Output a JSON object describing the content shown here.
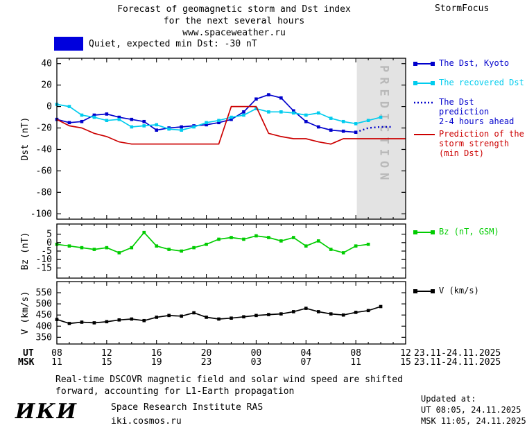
{
  "header": {
    "title_line1": "Forecast of geomagnetic storm and Dst index",
    "title_line2": "for the next several hours",
    "title_line3": "www.spaceweather.ru",
    "brand": "StormFocus"
  },
  "status": {
    "box_color": "#0000dd",
    "label": "Quiet, expected min Dst: -30 nT"
  },
  "prediction_band": {
    "label": "PREDICTION",
    "fill": "#e3e3e3",
    "text_color": "#b9b9b9",
    "start_hour": 32.08
  },
  "xaxis": {
    "tick_hours": [
      8,
      12,
      16,
      20,
      24,
      28,
      32,
      36
    ],
    "ut_row_label": "UT",
    "msk_row_label": "MSK",
    "ut_ticks": [
      "08",
      "12",
      "16",
      "20",
      "00",
      "04",
      "08",
      "12"
    ],
    "msk_ticks": [
      "11",
      "15",
      "19",
      "23",
      "03",
      "07",
      "11",
      "15"
    ],
    "ut_date": "23.11-24.11.2025",
    "msk_date": "23.11-24.11.2025"
  },
  "chart_data": [
    {
      "type": "line",
      "ylabel": "Dst (nT)",
      "ylim": [
        -100,
        40
      ],
      "yticks": [
        40,
        20,
        0,
        -20,
        -40,
        -60,
        -80,
        -100
      ],
      "plot_range": [
        -105,
        45
      ],
      "x_hours_range": [
        8,
        36
      ],
      "has_prediction_band": true,
      "series": [
        {
          "name": "The Dst, Kyoto",
          "color": "#0000cc",
          "line": "solid",
          "marker": "square",
          "x_start": 8,
          "values": [
            -12,
            -15,
            -14,
            -8,
            -7,
            -10,
            -12,
            -14,
            -22,
            -20,
            -19,
            -18,
            -17,
            -15,
            -12,
            -5,
            7,
            11,
            8,
            -4,
            -14,
            -19,
            -22,
            -23,
            -24
          ]
        },
        {
          "name": "The recovered Dst",
          "color": "#00ccee",
          "line": "solid",
          "marker": "square",
          "x_start": 8,
          "values": [
            2,
            0,
            -8,
            -10,
            -13,
            -12,
            -19,
            -18,
            -17,
            -21,
            -22,
            -19,
            -15,
            -13,
            -10,
            -8,
            -2,
            -5,
            -5,
            -6,
            -8,
            -6,
            -11,
            -14,
            -16,
            -13,
            -10
          ]
        },
        {
          "name": "The Dst prediction 2-4 hours ahead",
          "color": "#0000cc",
          "line": "dotted",
          "marker": "none",
          "x_start": 32,
          "values": [
            -24,
            -20,
            -19,
            -19
          ]
        },
        {
          "name": "Prediction of the storm strength (min Dst)",
          "color": "#cc0000",
          "line": "solid",
          "marker": "none",
          "x_start": 8,
          "values": [
            -12,
            -18,
            -20,
            -25,
            -28,
            -33,
            -35,
            -35,
            -35,
            -35,
            -35,
            -35,
            -35,
            -35,
            0,
            0,
            0,
            -25,
            -28,
            -30,
            -30,
            -33,
            -35,
            -30,
            -30,
            -30,
            -30,
            -30,
            -30
          ]
        }
      ]
    },
    {
      "type": "line",
      "ylabel": "Bz (nT)",
      "ylim": [
        -15,
        5
      ],
      "yticks": [
        5,
        0,
        -5,
        -10,
        -15
      ],
      "plot_range": [
        -21,
        11
      ],
      "x_hours_range": [
        8,
        36
      ],
      "has_prediction_band": false,
      "series": [
        {
          "name": "Bz (nT, GSM)",
          "color": "#00cc00",
          "line": "solid",
          "marker": "square",
          "x_start": 8,
          "values": [
            -1,
            -2,
            -3,
            -4,
            -3,
            -6,
            -3,
            6,
            -2,
            -4,
            -5,
            -3,
            -1,
            2,
            3,
            2,
            4,
            3,
            1,
            3,
            -2,
            1,
            -4,
            -6,
            -2,
            -1
          ]
        }
      ]
    },
    {
      "type": "line",
      "ylabel": "V (km/s)",
      "ylim": [
        350,
        550
      ],
      "yticks": [
        550,
        500,
        450,
        400,
        350
      ],
      "plot_range": [
        320,
        600
      ],
      "x_hours_range": [
        8,
        36
      ],
      "has_prediction_band": false,
      "series": [
        {
          "name": "V (km/s)",
          "color": "#000000",
          "line": "solid",
          "marker": "square",
          "x_start": 8,
          "values": [
            430,
            412,
            418,
            415,
            420,
            428,
            432,
            425,
            440,
            448,
            445,
            460,
            440,
            432,
            436,
            442,
            448,
            452,
            455,
            465,
            480,
            465,
            455,
            450,
            462,
            470,
            488
          ]
        }
      ]
    }
  ],
  "legend": {
    "items": [
      {
        "label_lines": [
          "The Dst, Kyoto"
        ],
        "color": "#0000cc",
        "marker": "line-squares"
      },
      {
        "label_lines": [
          "The recovered Dst"
        ],
        "color": "#00ccee",
        "marker": "line-squares"
      },
      {
        "label_lines": [
          "The Dst prediction",
          "2-4 hours ahead"
        ],
        "color": "#0000cc",
        "marker": "dotted"
      },
      {
        "label_lines": [
          "Prediction of the",
          "storm strength",
          "(min Dst)"
        ],
        "color": "#cc0000",
        "marker": "line"
      },
      {
        "label_lines": [
          "Bz (nT, GSM)"
        ],
        "color": "#00cc00",
        "marker": "line-squares"
      },
      {
        "label_lines": [
          "V (km/s)"
        ],
        "color": "#000000",
        "marker": "line-squares"
      }
    ]
  },
  "footer": {
    "note_line1": "Real-time DSCOVR magnetic field and solar wind speed are shifted",
    "note_line2": "forward, accounting for L1-Earth propagation"
  },
  "updated": {
    "title": "Updated at:",
    "ut": "UT  08:05, 24.11.2025",
    "msk": "MSK 11:05, 24.11.2025"
  },
  "logo": {
    "mark": "ИКИ",
    "name": "Space Research Institute RAS",
    "site": "iki.cosmos.ru"
  }
}
